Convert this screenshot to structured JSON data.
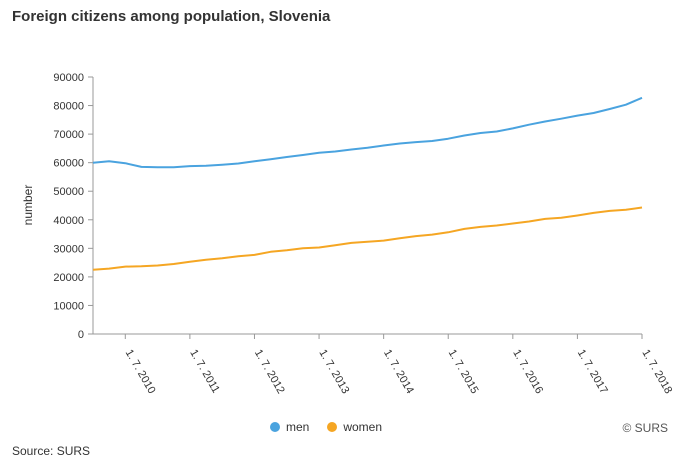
{
  "title": "Foreign citizens among population, Slovenia",
  "source": "Source: SURS",
  "copyright": "© SURS",
  "chart_data": {
    "type": "line",
    "title": "Foreign citizens among population, Slovenia",
    "ylabel": "number",
    "xlabel": "",
    "ylim": [
      0,
      90000
    ],
    "yticks": [
      "0",
      "10000",
      "20000",
      "30000",
      "40000",
      "50000",
      "60000",
      "70000",
      "80000",
      "90000"
    ],
    "x": [
      "1. 1. 2010",
      "1. 4. 2010",
      "1. 7. 2010",
      "1. 10. 2010",
      "1. 1. 2011",
      "1. 4. 2011",
      "1. 7. 2011",
      "1. 10. 2011",
      "1. 1. 2012",
      "1. 4. 2012",
      "1. 7. 2012",
      "1. 10. 2012",
      "1. 1. 2013",
      "1. 4. 2013",
      "1. 7. 2013",
      "1. 10. 2013",
      "1. 1. 2014",
      "1. 4. 2014",
      "1. 7. 2014",
      "1. 10. 2014",
      "1. 1. 2015",
      "1. 4. 2015",
      "1. 7. 2015",
      "1. 10. 2015",
      "1. 1. 2016",
      "1. 4. 2016",
      "1. 7. 2016",
      "1. 10. 2016",
      "1. 1. 2017",
      "1. 4. 2017",
      "1. 7. 2017",
      "1. 10. 2017",
      "1. 1. 2018",
      "1. 4. 2018",
      "1. 7. 2018"
    ],
    "xticklabels": [
      "1. 7. 2010",
      "1. 7. 2011",
      "1. 7. 2012",
      "1. 7. 2013",
      "1. 7. 2014",
      "1. 7. 2015",
      "1. 7. 2016",
      "1. 7. 2017",
      "1. 7. 2018"
    ],
    "series": [
      {
        "name": "men",
        "color": "#4aa3df",
        "values": [
          60000,
          60500,
          59800,
          58500,
          58400,
          58400,
          58800,
          58900,
          59300,
          59700,
          60500,
          61200,
          62000,
          62700,
          63500,
          63900,
          64600,
          65200,
          66000,
          66700,
          67200,
          67600,
          68400,
          69500,
          70400,
          70900,
          72000,
          73300,
          74400,
          75400,
          76500,
          77400,
          78800,
          80300,
          82700
        ]
      },
      {
        "name": "women",
        "color": "#f5a623",
        "values": [
          22500,
          22900,
          23600,
          23700,
          24000,
          24500,
          25300,
          26000,
          26500,
          27200,
          27700,
          28800,
          29300,
          30000,
          30300,
          31100,
          31900,
          32300,
          32700,
          33500,
          34300,
          34800,
          35600,
          36800,
          37500,
          38000,
          38700,
          39400,
          40300,
          40700,
          41500,
          42400,
          43100,
          43500,
          44300
        ]
      }
    ],
    "grid": false,
    "legend": "bottom-center"
  }
}
